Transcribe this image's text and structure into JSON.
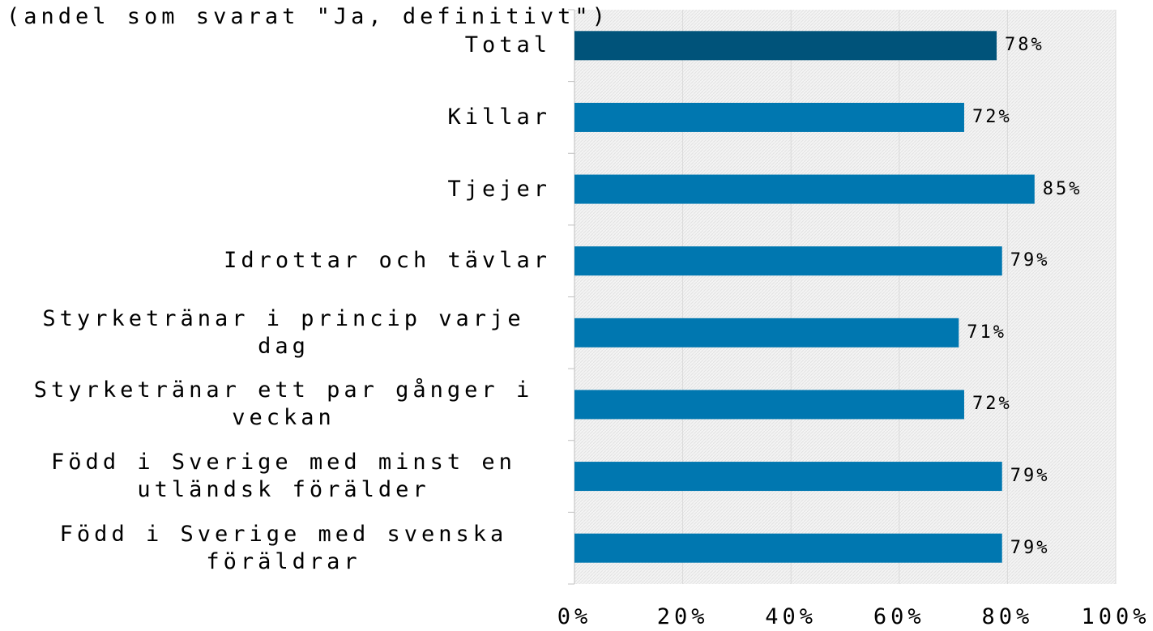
{
  "chart_data": {
    "type": "barh",
    "subtitle": "(andel som svarat \"Ja, definitivt\")",
    "categories": [
      "Total",
      "Killar",
      "Tjejer",
      "Idrottar och tävlar",
      "Styrketränar i princip varje dag",
      "Styrketränar ett par gånger i veckan",
      "Född i Sverige med minst en utländsk förälder",
      "Född i Sverige med svenska föräldrar"
    ],
    "values": [
      78,
      72,
      85,
      79,
      71,
      72,
      79,
      79
    ],
    "value_labels": [
      "78%",
      "72%",
      "85%",
      "79%",
      "71%",
      "72%",
      "79%",
      "79%"
    ],
    "colors": [
      "#00537a",
      "#0077b0",
      "#0077b0",
      "#0077b0",
      "#0077b0",
      "#0077b0",
      "#0077b0",
      "#0077b0"
    ],
    "xlim": [
      0,
      100
    ],
    "xticks": [
      {
        "value": 0,
        "label": "0%"
      },
      {
        "value": 20,
        "label": "20%"
      },
      {
        "value": 40,
        "label": "40%"
      },
      {
        "value": 60,
        "label": "60%"
      },
      {
        "value": 80,
        "label": "80%"
      },
      {
        "value": 100,
        "label": "100%"
      }
    ],
    "grid": true
  }
}
